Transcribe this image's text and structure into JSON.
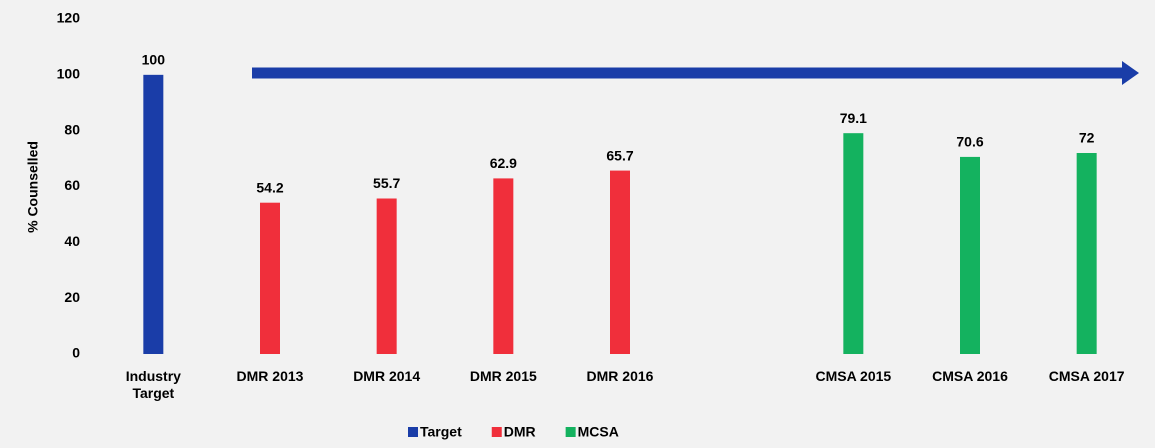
{
  "chart_data": {
    "type": "bar",
    "categories": [
      "Industry Target",
      "DMR 2013",
      "DMR 2014",
      "DMR 2015",
      "DMR 2016",
      null,
      "CMSA 2015",
      "CMSA 2016",
      "CMSA 2017"
    ],
    "series": [
      {
        "name": "Target",
        "color": "#1a3da8",
        "values": [
          100,
          null,
          null,
          null,
          null,
          null,
          null,
          null,
          null
        ]
      },
      {
        "name": "DMR",
        "color": "#f02f3b",
        "values": [
          null,
          54.2,
          55.7,
          62.9,
          65.7,
          null,
          null,
          null,
          null
        ]
      },
      {
        "name": "MCSA",
        "color": "#14b25f",
        "values": [
          null,
          null,
          null,
          null,
          null,
          null,
          79.1,
          70.6,
          72
        ]
      }
    ],
    "y_label": "% Counselled",
    "ylim": [
      0,
      120
    ],
    "yticks": [
      0,
      20,
      40,
      60,
      80,
      100,
      120
    ],
    "grid": false,
    "legend": "bottom"
  }
}
